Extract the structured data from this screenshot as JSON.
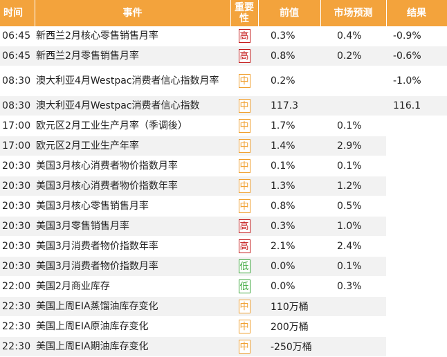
{
  "headers": {
    "time": "时间",
    "event": "事件",
    "importance": "重要性",
    "previous": "前值",
    "forecast": "市场预测",
    "result": "结果"
  },
  "colors": {
    "header_bg": "#f3a33c",
    "high": "#c41a1a",
    "mid": "#f0a030",
    "low": "#3aa63a"
  },
  "rows": [
    {
      "time": "06:45",
      "event": "新西兰2月核心零售销售月率",
      "importance": "高",
      "level": "high",
      "previous": "0.3%",
      "forecast": "0.4%",
      "result": "-0.9%"
    },
    {
      "time": "06:45",
      "event": "新西兰2月零售销售月率",
      "importance": "高",
      "level": "high",
      "previous": "0.8%",
      "forecast": "0.2%",
      "result": "-0.6%"
    },
    {
      "time": "08:30",
      "event": "澳大利亚4月Westpac消费者信心指数月率",
      "importance": "中",
      "level": "mid",
      "previous": "0.2%",
      "forecast": "",
      "result": "-1.0%"
    },
    {
      "time": "08:30",
      "event": "澳大利亚4月Westpac消费者信心指数",
      "importance": "中",
      "level": "mid",
      "previous": "117.3",
      "forecast": "",
      "result": "116.1"
    },
    {
      "time": "17:00",
      "event": "欧元区2月工业生产月率（季调後）",
      "importance": "中",
      "level": "mid",
      "previous": "1.7%",
      "forecast": "0.1%",
      "result": ""
    },
    {
      "time": "17:00",
      "event": "欧元区2月工业生产年率",
      "importance": "中",
      "level": "mid",
      "previous": "1.4%",
      "forecast": "2.9%",
      "result": ""
    },
    {
      "time": "20:30",
      "event": "美国3月核心消费者物价指数月率",
      "importance": "中",
      "level": "mid",
      "previous": "0.1%",
      "forecast": "0.1%",
      "result": ""
    },
    {
      "time": "20:30",
      "event": "美国3月核心消费者物价指数年率",
      "importance": "中",
      "level": "mid",
      "previous": "1.3%",
      "forecast": "1.2%",
      "result": ""
    },
    {
      "time": "20:30",
      "event": "美国3月核心零售销售月率",
      "importance": "中",
      "level": "mid",
      "previous": "0.8%",
      "forecast": "0.5%",
      "result": ""
    },
    {
      "time": "20:30",
      "event": "美国3月零售销售月率",
      "importance": "高",
      "level": "high",
      "previous": "0.3%",
      "forecast": "1.0%",
      "result": ""
    },
    {
      "time": "20:30",
      "event": "美国3月消费者物价指数年率",
      "importance": "高",
      "level": "high",
      "previous": "2.1%",
      "forecast": "2.4%",
      "result": ""
    },
    {
      "time": "20:30",
      "event": "美国3月消费者物价指数月率",
      "importance": "低",
      "level": "low",
      "previous": "0.0%",
      "forecast": "0.1%",
      "result": ""
    },
    {
      "time": "22:00",
      "event": "美国2月商业库存",
      "importance": "低",
      "level": "low",
      "previous": "0.0%",
      "forecast": "0.3%",
      "result": ""
    },
    {
      "time": "22:30",
      "event": "美国上周EIA蒸馏油库存变化",
      "importance": "中",
      "level": "mid",
      "previous": "110万桶",
      "forecast": "",
      "result": ""
    },
    {
      "time": "22:30",
      "event": "美国上周EIA原油库存变化",
      "importance": "中",
      "level": "mid",
      "previous": "200万桶",
      "forecast": "",
      "result": ""
    },
    {
      "time": "22:30",
      "event": "美国上周EIA期油库存变化",
      "importance": "中",
      "level": "mid",
      "previous": "-250万桶",
      "forecast": "",
      "result": ""
    }
  ]
}
